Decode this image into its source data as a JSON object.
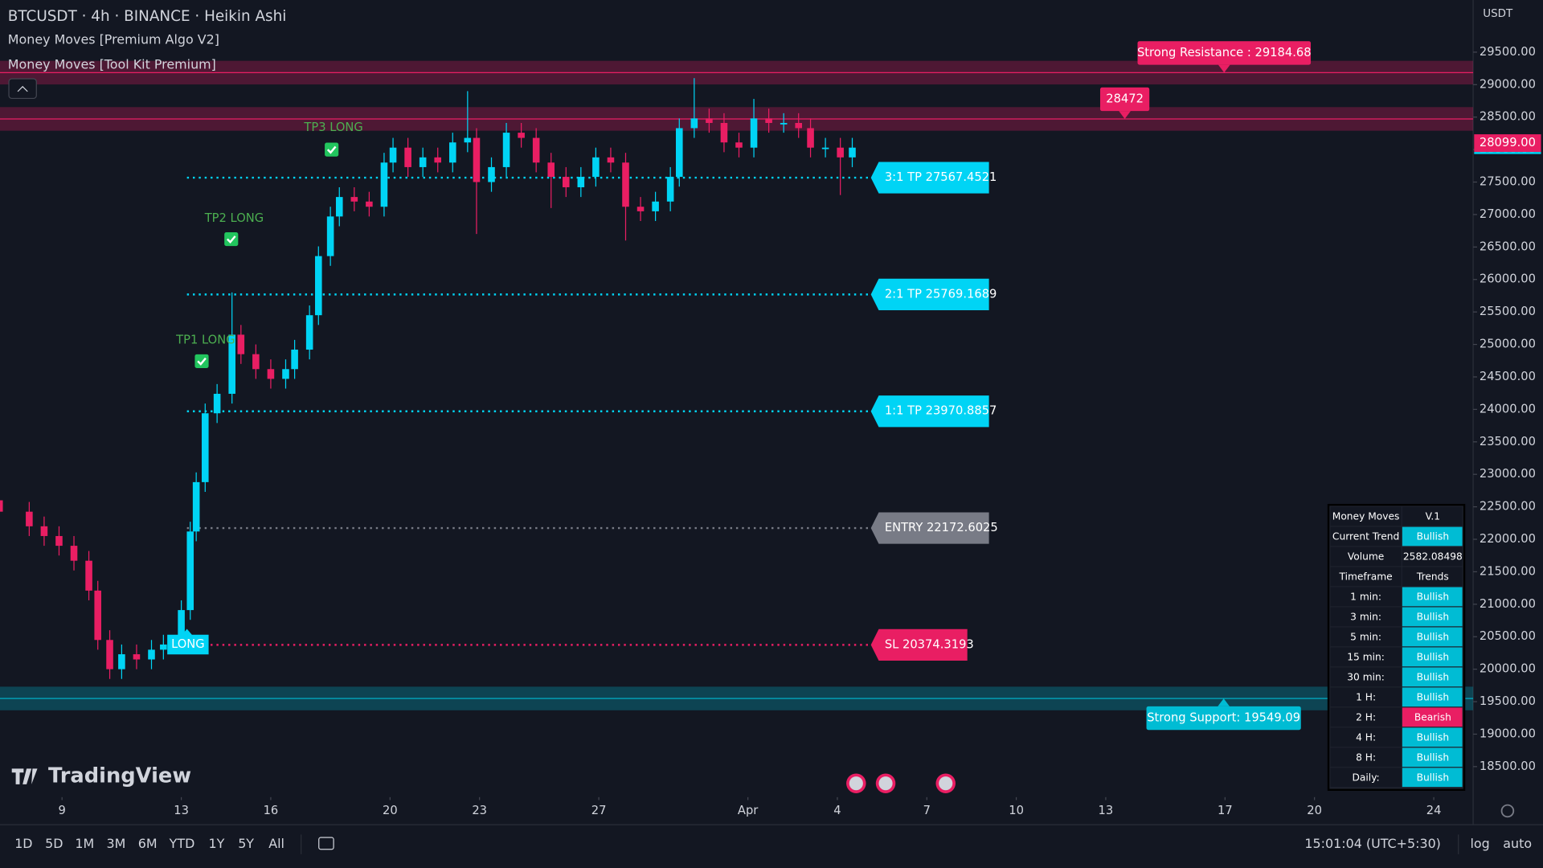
{
  "header": {
    "symbol": "BTCUSDT · 4h · BINANCE · Heikin Ashi",
    "indicators": [
      "Money Moves [Premium Algo V2]",
      "Money Moves [Tool Kit Premium]"
    ],
    "currency": "USDT"
  },
  "watermark": "TradingView",
  "chart_data": {
    "type": "candlestick",
    "x": [
      -2.1,
      -1.1,
      -0.6,
      -0.1,
      0.4,
      0.9,
      1.2,
      1.6,
      2.0,
      2.5,
      3.0,
      3.4,
      4.0,
      4.3,
      4.5,
      4.8,
      5.2,
      5.7,
      6.0,
      6.5,
      7.0,
      7.5,
      7.8,
      8.3,
      8.6,
      9.0,
      9.3,
      9.8,
      10.3,
      10.8,
      11.1,
      11.6,
      12.1,
      12.6,
      13.1,
      13.6,
      13.9,
      14.4,
      14.9,
      15.4,
      15.9,
      16.4,
      16.9,
      17.4,
      17.9,
      18.4,
      18.9,
      19.4,
      19.9,
      20.4,
      20.7,
      21.2,
      21.7,
      22.2,
      22.7,
      23.2,
      23.7,
      24.2,
      24.7,
      25.1,
      25.6,
      26.1,
      26.5
    ],
    "open": [
      22600,
      22425,
      22200,
      22050,
      21900,
      21670,
      21210,
      20450,
      20000,
      20230,
      20150,
      20300,
      20380,
      20910,
      22120,
      22880,
      23940,
      24240,
      25150,
      24850,
      24620,
      24470,
      24620,
      24920,
      25450,
      26360,
      26970,
      27270,
      27200,
      27120,
      27800,
      28030,
      27730,
      27880,
      27800,
      28110,
      28180,
      27500,
      27730,
      28260,
      28180,
      27800,
      27580,
      27420,
      27580,
      27880,
      27800,
      27120,
      27050,
      27200,
      27580,
      28330,
      28480,
      28410,
      28110,
      28030,
      28480,
      28410,
      28410,
      28330,
      28030,
      28030,
      27880
    ],
    "close": [
      22425,
      22200,
      22050,
      21900,
      21670,
      21210,
      20450,
      20000,
      20230,
      20150,
      20300,
      20380,
      20910,
      22120,
      22880,
      23940,
      24240,
      25150,
      24850,
      24620,
      24470,
      24620,
      24920,
      25450,
      26360,
      26970,
      27270,
      27200,
      27120,
      27800,
      28030,
      27730,
      27880,
      27800,
      28110,
      28180,
      27500,
      27730,
      28260,
      28180,
      27800,
      27580,
      27420,
      27580,
      27880,
      27800,
      27120,
      27050,
      27200,
      27580,
      28330,
      28480,
      28410,
      28110,
      28030,
      28480,
      28410,
      28410,
      28330,
      28030,
      28030,
      27880,
      28030
    ],
    "high": [
      22750,
      22575,
      22350,
      22200,
      22050,
      21820,
      21360,
      20600,
      20380,
      20380,
      20450,
      20530,
      21060,
      22270,
      23030,
      24090,
      24390,
      25800,
      25300,
      25000,
      24770,
      24770,
      25070,
      25600,
      26510,
      27120,
      27420,
      27420,
      27350,
      27950,
      28180,
      28180,
      28030,
      28030,
      28260,
      28900,
      28330,
      27880,
      28410,
      28410,
      28330,
      27950,
      27730,
      27730,
      28030,
      28030,
      27950,
      27270,
      27350,
      27730,
      28480,
      29100,
      28630,
      28560,
      28260,
      28780,
      28630,
      28560,
      28560,
      28480,
      28180,
      28180,
      28180
    ],
    "low": [
      22275,
      22050,
      21900,
      21750,
      21520,
      21060,
      20300,
      19850,
      19850,
      20000,
      20000,
      20150,
      20230,
      20760,
      21970,
      22730,
      23790,
      24090,
      24700,
      24470,
      24320,
      24320,
      24470,
      24770,
      25300,
      26210,
      26820,
      27050,
      26970,
      26970,
      27650,
      27580,
      27580,
      27650,
      27650,
      27960,
      26700,
      27350,
      27580,
      28030,
      27650,
      27100,
      27270,
      27270,
      27430,
      27650,
      26600,
      26900,
      26900,
      27050,
      27430,
      28180,
      28260,
      27960,
      27880,
      27880,
      28260,
      28260,
      28180,
      27880,
      27880,
      27300,
      27730
    ],
    "up_color": "#00d4f5",
    "down_color": "#e91e63",
    "xlim": [
      -2.08,
      47.32
    ],
    "xticks": [
      {
        "value": 0,
        "label": "9"
      },
      {
        "value": 4,
        "label": "13"
      },
      {
        "value": 7,
        "label": "16"
      },
      {
        "value": 11,
        "label": "20"
      },
      {
        "value": 14,
        "label": "23"
      },
      {
        "value": 18,
        "label": "27"
      },
      {
        "value": 23,
        "label": "Apr"
      },
      {
        "value": 26,
        "label": "4"
      },
      {
        "value": 29,
        "label": "7"
      },
      {
        "value": 32,
        "label": "10"
      },
      {
        "value": 35,
        "label": "13"
      },
      {
        "value": 39,
        "label": "17"
      },
      {
        "value": 42,
        "label": "20"
      },
      {
        "value": 46,
        "label": "24"
      }
    ],
    "ylim": [
      18030,
      30303
    ],
    "yticks": [
      {
        "value": 18500,
        "label": "18500.00"
      },
      {
        "value": 19000,
        "label": "19000.00"
      },
      {
        "value": 19500,
        "label": "19500.00"
      },
      {
        "value": 20000,
        "label": "20000.00"
      },
      {
        "value": 20500,
        "label": "20500.00"
      },
      {
        "value": 21000,
        "label": "21000.00"
      },
      {
        "value": 21500,
        "label": "21500.00"
      },
      {
        "value": 22000,
        "label": "22000.00"
      },
      {
        "value": 22500,
        "label": "22500.00"
      },
      {
        "value": 23000,
        "label": "23000.00"
      },
      {
        "value": 23500,
        "label": "23500.00"
      },
      {
        "value": 24000,
        "label": "24000.00"
      },
      {
        "value": 24500,
        "label": "24500.00"
      },
      {
        "value": 25000,
        "label": "25000.00"
      },
      {
        "value": 25500,
        "label": "25500.00"
      },
      {
        "value": 26000,
        "label": "26000.00"
      },
      {
        "value": 26500,
        "label": "26500.00"
      },
      {
        "value": 27000,
        "label": "27000.00"
      },
      {
        "value": 27500,
        "label": "27500.00"
      },
      {
        "value": 28000,
        "label": "28000.00"
      },
      {
        "value": 28500,
        "label": "28500.00"
      },
      {
        "value": 29000,
        "label": "29000.00"
      },
      {
        "value": 29500,
        "label": "29500.00"
      }
    ],
    "last_price": {
      "value": 28099,
      "label": "28099.00"
    },
    "levels": [
      {
        "label": "Strong Resistance : 29184.68",
        "value": 29184.68,
        "color": "#e91e63"
      },
      {
        "label": "28472",
        "value": 28472,
        "color": "#e91e63"
      },
      {
        "label": "Strong Support: 19549.09",
        "value": 19549.09,
        "color": "#00bcd4"
      }
    ],
    "targets": [
      {
        "label": "3:1 TP 27567.4521",
        "value": 27567.4521,
        "color": "#00d4f5"
      },
      {
        "label": "2:1 TP 25769.1689",
        "value": 25769.1689,
        "color": "#00d4f5"
      },
      {
        "label": "1:1 TP 23970.8857",
        "value": 23970.8857,
        "color": "#00d4f5"
      },
      {
        "label": "ENTRY 22172.6025",
        "value": 22172.6025,
        "color": "#787b86"
      },
      {
        "label": "SL 20374.3193",
        "value": 20374.3193,
        "color": "#e91e63"
      }
    ],
    "annotations": [
      "TP1 LONG",
      "TP2 LONG",
      "TP3 LONG",
      "LONG"
    ]
  },
  "trend_table": {
    "title": [
      "Money Moves",
      "V.1"
    ],
    "rows": [
      {
        "label": "Current Trend",
        "value": "Bullish",
        "color": "#00bcd4"
      },
      {
        "label": "Volume",
        "value": "2582.08498"
      },
      {
        "label": "Timeframe",
        "value": "Trends"
      },
      {
        "label": "1 min:",
        "value": "Bullish",
        "color": "#00bcd4"
      },
      {
        "label": "3 min:",
        "value": "Bullish",
        "color": "#00bcd4"
      },
      {
        "label": "5 min:",
        "value": "Bullish",
        "color": "#00bcd4"
      },
      {
        "label": "15 min:",
        "value": "Bullish",
        "color": "#00bcd4"
      },
      {
        "label": "30 min:",
        "value": "Bullish",
        "color": "#00bcd4"
      },
      {
        "label": "1 H:",
        "value": "Bullish",
        "color": "#00bcd4"
      },
      {
        "label": "2 H:",
        "value": "Bearish",
        "color": "#e91e63"
      },
      {
        "label": "4 H:",
        "value": "Bullish",
        "color": "#00bcd4"
      },
      {
        "label": "8 H:",
        "value": "Bullish",
        "color": "#00bcd4"
      },
      {
        "label": "Daily:",
        "value": "Bullish",
        "color": "#00bcd4"
      }
    ]
  },
  "toolbar": {
    "ranges": [
      "1D",
      "5D",
      "1M",
      "3M",
      "6M",
      "YTD",
      "1Y",
      "5Y",
      "All"
    ],
    "clock": "15:01:04 (UTC+5:30)",
    "scale": [
      "log",
      "auto"
    ]
  }
}
